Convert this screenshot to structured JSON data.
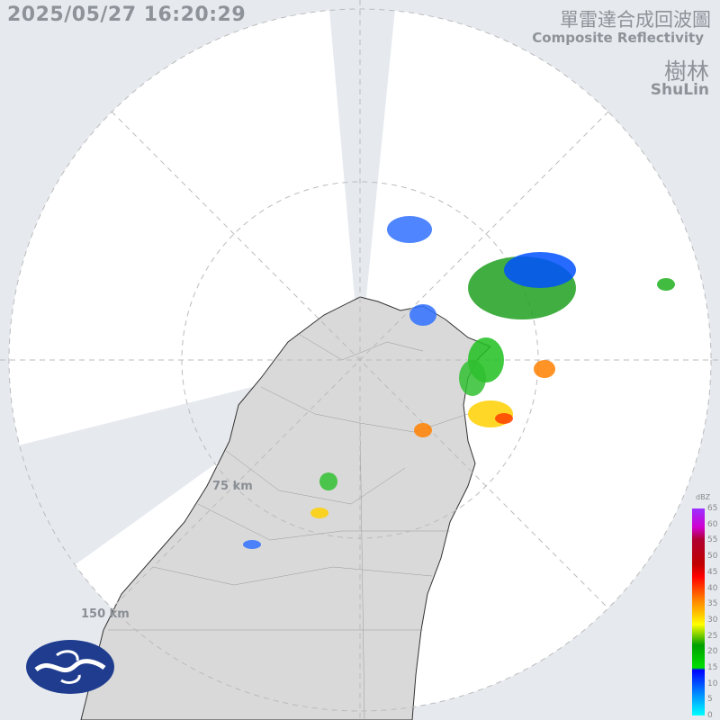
{
  "timestamp": "2025/05/27 16:20:29",
  "title_zh": "單雷達合成回波圖",
  "title_en": "Composite Reflectivity",
  "site_zh": "樹林",
  "site_en": "ShuLin",
  "range_labels": [
    "75 km",
    "150 km"
  ],
  "legend": {
    "unit": "dBZ",
    "ticks": [
      "65",
      "60",
      "55",
      "50",
      "45",
      "40",
      "35",
      "30",
      "25",
      "20",
      "15",
      "10",
      "5",
      "0"
    ]
  },
  "colors": {
    "background": "#e6eaef",
    "coverage": "#ffffff",
    "land": "#dadada",
    "logo": "#1f3c8f"
  },
  "logo_icon": "cwa-logo-icon"
}
